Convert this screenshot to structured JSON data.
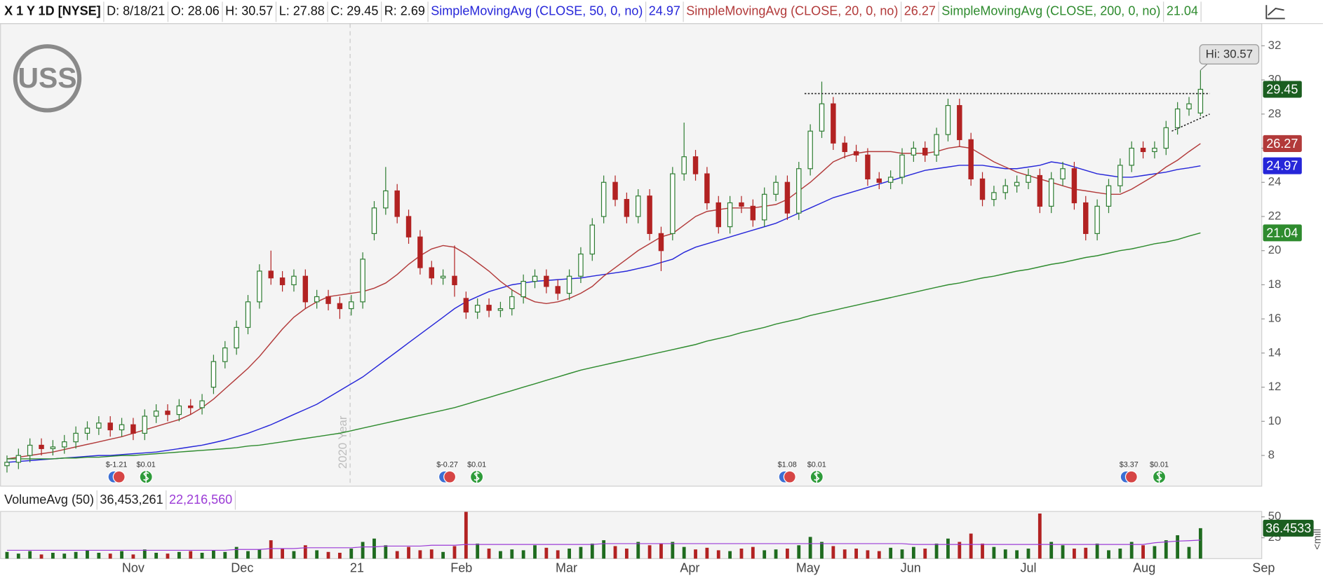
{
  "chart_data": {
    "type": "candlestick",
    "header": [
      "X 1 Y 1D [NYSE]",
      "D: 8/18/21",
      "O: 28.06",
      "H: 30.57",
      "L: 27.88",
      "C: 29.45",
      "R: 2.69"
    ],
    "logo": "USS",
    "hi_label": "Hi: 30.57",
    "year_marker": {
      "label": "2020 Year",
      "at": 29.9
    },
    "up_color": "#2e7d32",
    "down_color": "#b22222",
    "categories": [
      null,
      null,
      null,
      null,
      null,
      null,
      null,
      null,
      null,
      null,
      null,
      null,
      null,
      null,
      null,
      null,
      null,
      null,
      null,
      null,
      null,
      null,
      null,
      null,
      null,
      null,
      null,
      null,
      null,
      null,
      null,
      null,
      null,
      null,
      null,
      null,
      null,
      null,
      null,
      null,
      null,
      null,
      null,
      null,
      null,
      null,
      null,
      null,
      null,
      null,
      null,
      null,
      null,
      null,
      null,
      null,
      null,
      null,
      null,
      null,
      null,
      null,
      null,
      null,
      null,
      null,
      null,
      null,
      null,
      null,
      null,
      null,
      null,
      null,
      null,
      null,
      null,
      null,
      null,
      null,
      null,
      null,
      null,
      null,
      null,
      null,
      null,
      null,
      null,
      null,
      null,
      null,
      null,
      null,
      null,
      null,
      null,
      null,
      null,
      null,
      null,
      null,
      null,
      null,
      null
    ],
    "open": [
      7.4,
      7.6,
      8.0,
      8.6,
      8.4,
      8.5,
      8.8,
      9.3,
      9.6,
      9.9,
      9.5,
      9.8,
      9.3,
      10.3,
      10.6,
      10.4,
      10.9,
      10.8,
      12.0,
      13.5,
      14.3,
      15.5,
      17.0,
      18.8,
      18.4,
      18.0,
      18.5,
      17.0,
      17.3,
      16.9,
      16.6,
      17.0,
      21.0,
      22.5,
      23.5,
      22.0,
      20.8,
      19.0,
      18.4,
      18.5,
      17.2,
      16.4,
      16.8,
      16.5,
      16.6,
      17.3,
      18.2,
      18.5,
      17.9,
      17.5,
      18.5,
      19.8,
      22.0,
      24.0,
      23.0,
      22.0,
      23.2,
      21.0,
      21.0,
      24.5,
      25.5,
      24.5,
      22.8,
      21.4,
      22.8,
      22.6,
      21.8,
      23.3,
      24.0,
      22.2,
      24.8,
      27.0,
      28.6,
      26.3,
      25.8,
      25.6,
      24.2,
      24.0,
      24.3,
      25.6,
      26.0,
      25.6,
      26.8,
      28.5,
      26.5,
      24.2,
      23.0,
      23.4,
      23.8,
      24.0,
      24.4,
      22.6,
      24.2,
      24.8,
      22.8,
      21.0,
      22.6,
      23.8,
      25.0,
      26.0,
      25.8,
      26.0,
      27.2,
      28.3,
      28.06
    ],
    "high": [
      8.0,
      8.4,
      9.0,
      9.0,
      8.9,
      9.2,
      9.7,
      10.0,
      10.3,
      10.3,
      10.2,
      10.2,
      10.7,
      11.0,
      11.0,
      11.3,
      11.3,
      11.6,
      13.9,
      14.7,
      15.9,
      17.4,
      19.2,
      20.0,
      18.8,
      18.9,
      18.9,
      17.7,
      17.7,
      17.3,
      17.4,
      19.9,
      22.9,
      24.9,
      23.9,
      22.4,
      21.2,
      19.4,
      18.9,
      20.3,
      17.6,
      17.2,
      17.2,
      17.0,
      17.7,
      18.6,
      18.9,
      18.9,
      18.3,
      18.9,
      20.2,
      21.9,
      24.4,
      24.4,
      23.4,
      23.6,
      23.6,
      21.4,
      24.9,
      27.5,
      25.9,
      24.9,
      23.2,
      23.2,
      23.2,
      23.0,
      23.7,
      24.4,
      24.4,
      25.2,
      27.4,
      29.9,
      29.0,
      26.7,
      26.2,
      26.0,
      24.6,
      24.7,
      26.0,
      26.4,
      26.4,
      27.2,
      28.9,
      28.9,
      26.9,
      24.6,
      23.8,
      24.2,
      24.4,
      24.8,
      24.8,
      24.6,
      25.2,
      25.2,
      23.2,
      23.0,
      24.2,
      25.4,
      26.4,
      26.4,
      26.4,
      27.6,
      28.7,
      29.0,
      30.57
    ],
    "low": [
      7.0,
      7.2,
      7.6,
      8.0,
      8.0,
      8.1,
      8.4,
      8.9,
      9.2,
      9.1,
      9.1,
      8.9,
      8.9,
      9.9,
      10.0,
      10.0,
      10.4,
      10.4,
      11.6,
      13.1,
      13.9,
      15.1,
      16.6,
      18.0,
      17.6,
      17.6,
      16.6,
      16.6,
      16.5,
      16.0,
      16.2,
      16.6,
      20.6,
      22.1,
      21.6,
      20.4,
      18.6,
      18.0,
      18.0,
      17.3,
      16.0,
      16.0,
      16.1,
      16.1,
      16.2,
      16.9,
      17.8,
      17.5,
      17.1,
      17.1,
      18.1,
      19.4,
      21.6,
      22.6,
      21.6,
      21.6,
      20.6,
      18.8,
      20.6,
      24.1,
      24.1,
      22.4,
      21.0,
      21.0,
      22.2,
      21.4,
      21.4,
      22.9,
      21.8,
      21.8,
      24.4,
      26.6,
      25.9,
      25.4,
      25.2,
      23.8,
      23.6,
      23.6,
      23.9,
      25.2,
      25.2,
      25.2,
      26.4,
      26.1,
      23.8,
      22.6,
      22.6,
      23.0,
      23.4,
      23.6,
      22.2,
      22.2,
      23.8,
      22.4,
      20.6,
      20.6,
      22.2,
      23.4,
      24.6,
      25.4,
      25.4,
      25.6,
      26.8,
      27.9,
      27.88
    ],
    "close": [
      7.6,
      8.0,
      8.6,
      8.4,
      8.5,
      8.8,
      9.3,
      9.6,
      9.9,
      9.5,
      9.8,
      9.3,
      10.3,
      10.6,
      10.4,
      10.9,
      10.8,
      11.2,
      13.5,
      14.3,
      15.5,
      17.0,
      18.8,
      18.4,
      18.0,
      18.5,
      17.0,
      17.3,
      16.9,
      16.6,
      17.0,
      19.5,
      22.5,
      23.5,
      22.0,
      20.8,
      19.0,
      18.4,
      18.5,
      18.0,
      16.4,
      16.8,
      16.5,
      16.6,
      17.3,
      18.2,
      18.5,
      17.9,
      17.5,
      18.5,
      19.8,
      21.5,
      24.0,
      23.0,
      22.0,
      23.2,
      21.0,
      20.0,
      24.5,
      25.5,
      24.5,
      22.8,
      21.4,
      22.8,
      22.6,
      21.8,
      23.3,
      24.0,
      22.2,
      24.8,
      27.0,
      28.6,
      26.3,
      25.8,
      25.6,
      24.2,
      24.0,
      24.3,
      25.6,
      26.0,
      25.6,
      26.8,
      28.5,
      26.5,
      24.2,
      23.0,
      23.4,
      23.8,
      24.0,
      24.4,
      22.6,
      24.2,
      24.8,
      22.8,
      21.0,
      22.6,
      23.8,
      25.0,
      26.0,
      25.8,
      26.0,
      27.2,
      28.3,
      28.6,
      29.45
    ],
    "series": [
      {
        "name": "SimpleMovingAvg (CLOSE, 50, 0, no)",
        "color": "#2626d9",
        "values": [
          7.6,
          7.65,
          7.7,
          7.75,
          7.8,
          7.85,
          7.9,
          7.95,
          8.0,
          8.0,
          8.05,
          8.1,
          8.15,
          8.2,
          8.3,
          8.4,
          8.5,
          8.6,
          8.75,
          8.9,
          9.1,
          9.3,
          9.55,
          9.8,
          10.1,
          10.4,
          10.7,
          11.0,
          11.4,
          11.8,
          12.2,
          12.6,
          13.1,
          13.6,
          14.1,
          14.6,
          15.1,
          15.6,
          16.1,
          16.6,
          17.0,
          17.3,
          17.6,
          17.8,
          18.0,
          18.1,
          18.2,
          18.25,
          18.3,
          18.35,
          18.4,
          18.5,
          18.6,
          18.7,
          18.8,
          18.95,
          19.1,
          19.3,
          19.5,
          19.9,
          20.2,
          20.4,
          20.6,
          20.8,
          21.0,
          21.2,
          21.4,
          21.6,
          21.9,
          22.2,
          22.5,
          22.8,
          23.1,
          23.3,
          23.5,
          23.7,
          23.9,
          24.1,
          24.3,
          24.5,
          24.7,
          24.8,
          24.9,
          25.0,
          25.0,
          25.0,
          24.9,
          24.8,
          24.8,
          24.9,
          25.0,
          25.2,
          25.1,
          24.9,
          24.7,
          24.5,
          24.4,
          24.3,
          24.3,
          24.4,
          24.5,
          24.6,
          24.75,
          24.85,
          24.97
        ]
      },
      {
        "name": "SimpleMovingAvg (CLOSE, 20, 0, no)",
        "color": "#b23a3a",
        "values": [
          7.8,
          7.9,
          8.0,
          8.1,
          8.2,
          8.35,
          8.5,
          8.65,
          8.8,
          8.95,
          9.1,
          9.3,
          9.5,
          9.7,
          9.9,
          10.1,
          10.4,
          10.8,
          11.3,
          11.9,
          12.5,
          13.1,
          13.8,
          14.6,
          15.4,
          16.1,
          16.6,
          17.0,
          17.3,
          17.4,
          17.5,
          17.6,
          17.8,
          18.1,
          18.6,
          19.2,
          19.7,
          20.1,
          20.3,
          20.2,
          19.8,
          19.3,
          18.8,
          18.2,
          17.7,
          17.3,
          17.0,
          16.9,
          17.0,
          17.2,
          17.5,
          17.9,
          18.5,
          19.0,
          19.5,
          20.0,
          20.4,
          20.8,
          21.0,
          21.5,
          22.0,
          22.3,
          22.4,
          22.5,
          22.5,
          22.5,
          22.6,
          22.7,
          23.0,
          23.5,
          24.0,
          24.6,
          25.2,
          25.5,
          25.7,
          25.8,
          25.8,
          25.8,
          25.7,
          25.7,
          25.7,
          25.8,
          26.0,
          26.1,
          26.0,
          25.6,
          25.2,
          24.9,
          24.6,
          24.4,
          24.2,
          24.0,
          23.8,
          23.6,
          23.5,
          23.4,
          23.3,
          23.3,
          23.6,
          24.0,
          24.4,
          24.9,
          25.3,
          25.8,
          26.27
        ]
      },
      {
        "name": "SimpleMovingAvg (CLOSE, 200, 0, no)",
        "color": "#2e8b2e",
        "values": [
          7.8,
          7.8,
          7.8,
          7.8,
          7.8,
          7.85,
          7.85,
          7.9,
          7.9,
          7.95,
          8.0,
          8.0,
          8.05,
          8.1,
          8.15,
          8.2,
          8.25,
          8.3,
          8.35,
          8.4,
          8.45,
          8.55,
          8.6,
          8.7,
          8.8,
          8.9,
          9.0,
          9.1,
          9.2,
          9.3,
          9.45,
          9.6,
          9.75,
          9.9,
          10.05,
          10.2,
          10.35,
          10.5,
          10.65,
          10.8,
          11.0,
          11.2,
          11.4,
          11.6,
          11.8,
          12.0,
          12.2,
          12.4,
          12.6,
          12.8,
          13.0,
          13.15,
          13.3,
          13.45,
          13.6,
          13.75,
          13.9,
          14.05,
          14.2,
          14.35,
          14.5,
          14.7,
          14.85,
          15.0,
          15.2,
          15.35,
          15.5,
          15.7,
          15.85,
          16.0,
          16.2,
          16.35,
          16.5,
          16.65,
          16.8,
          16.95,
          17.1,
          17.25,
          17.4,
          17.55,
          17.7,
          17.85,
          18.0,
          18.1,
          18.25,
          18.4,
          18.5,
          18.65,
          18.8,
          18.9,
          19.05,
          19.2,
          19.3,
          19.45,
          19.6,
          19.7,
          19.85,
          20.0,
          20.1,
          20.25,
          20.4,
          20.5,
          20.65,
          20.85,
          21.04
        ]
      }
    ],
    "close_tag_color": "#1b5e20",
    "xlim": [
      -0.6,
      109.3
    ],
    "xticks": [
      {
        "value": 11.0,
        "label": "Nov"
      },
      {
        "value": 20.5,
        "label": "Dec"
      },
      {
        "value": 30.5,
        "label": "21"
      },
      {
        "value": 39.6,
        "label": "Feb"
      },
      {
        "value": 48.75,
        "label": "Mar"
      },
      {
        "value": 59.5,
        "label": "Apr"
      },
      {
        "value": 69.8,
        "label": "May"
      },
      {
        "value": 78.75,
        "label": "Jun"
      },
      {
        "value": 89.0,
        "label": "Jul"
      },
      {
        "value": 99.1,
        "label": "Aug"
      },
      {
        "value": 109.5,
        "label": "Sep"
      }
    ],
    "ylim": [
      6.3,
      33.3
    ],
    "yticks": [
      8,
      10,
      12,
      14,
      16,
      18,
      20,
      22,
      24,
      26,
      28,
      30,
      32
    ],
    "lines": [
      {
        "from": [
          69.5,
          29.2
        ],
        "to": [
          104.8,
          29.2
        ]
      },
      {
        "from": [
          101.5,
          27.0
        ],
        "to": [
          104.8,
          28.0
        ]
      }
    ],
    "earnings": [
      "$-1.21",
      "$-0.27",
      "$1.08",
      "$3.37"
    ],
    "dividends": [
      "$0.01",
      "$0.01",
      "$0.01",
      "$0.01"
    ],
    "volume": {
      "legend": [
        "VolumeAvg (50)",
        "36,453,261",
        "22,216,560"
      ],
      "unit_label": "<mill",
      "values": [
        8,
        6,
        9,
        5,
        7,
        6,
        8,
        10,
        7,
        6,
        9,
        5,
        11,
        7,
        6,
        8,
        9,
        7,
        10,
        8,
        14,
        9,
        11,
        22,
        12,
        9,
        16,
        10,
        8,
        7,
        12,
        20,
        24,
        16,
        9,
        14,
        10,
        11,
        8,
        15,
        56,
        18,
        12,
        9,
        11,
        10,
        16,
        13,
        10,
        12,
        14,
        18,
        22,
        15,
        12,
        20,
        16,
        18,
        20,
        14,
        11,
        13,
        10,
        9,
        12,
        14,
        10,
        11,
        12,
        16,
        26,
        20,
        15,
        11,
        12,
        10,
        9,
        13,
        11,
        14,
        12,
        18,
        24,
        20,
        30,
        18,
        14,
        11,
        10,
        12,
        54,
        20,
        16,
        12,
        13,
        18,
        10,
        12,
        20,
        16,
        15,
        22,
        28,
        14,
        36.4533
      ],
      "avg": {
        "color": "#9b3bd6",
        "values": [
          10,
          10,
          10,
          10,
          10,
          10,
          10,
          10,
          10,
          10,
          10,
          10,
          10,
          10,
          10,
          10,
          10,
          10,
          10,
          10,
          11,
          11,
          11,
          12,
          12,
          12,
          13,
          13,
          13,
          13,
          13,
          14,
          14,
          15,
          15,
          15,
          15,
          16,
          16,
          16,
          17,
          17,
          17,
          17,
          17,
          17,
          17,
          17,
          17,
          17,
          17,
          17,
          18,
          18,
          18,
          18,
          18,
          18,
          18,
          18,
          18,
          18,
          18,
          18,
          18,
          18,
          18,
          18,
          18,
          18,
          18,
          18,
          18,
          18,
          18,
          18,
          18,
          18,
          18,
          17,
          17,
          17,
          17,
          17,
          17,
          17,
          17,
          17,
          17,
          17,
          17,
          17,
          17,
          17,
          17,
          17,
          17,
          17,
          17,
          17,
          19,
          20,
          21,
          21.5,
          22.2
        ]
      },
      "tag_color": "#1b5e20",
      "ylim": [
        0,
        56.5
      ],
      "yticks": [
        25,
        50
      ]
    }
  }
}
